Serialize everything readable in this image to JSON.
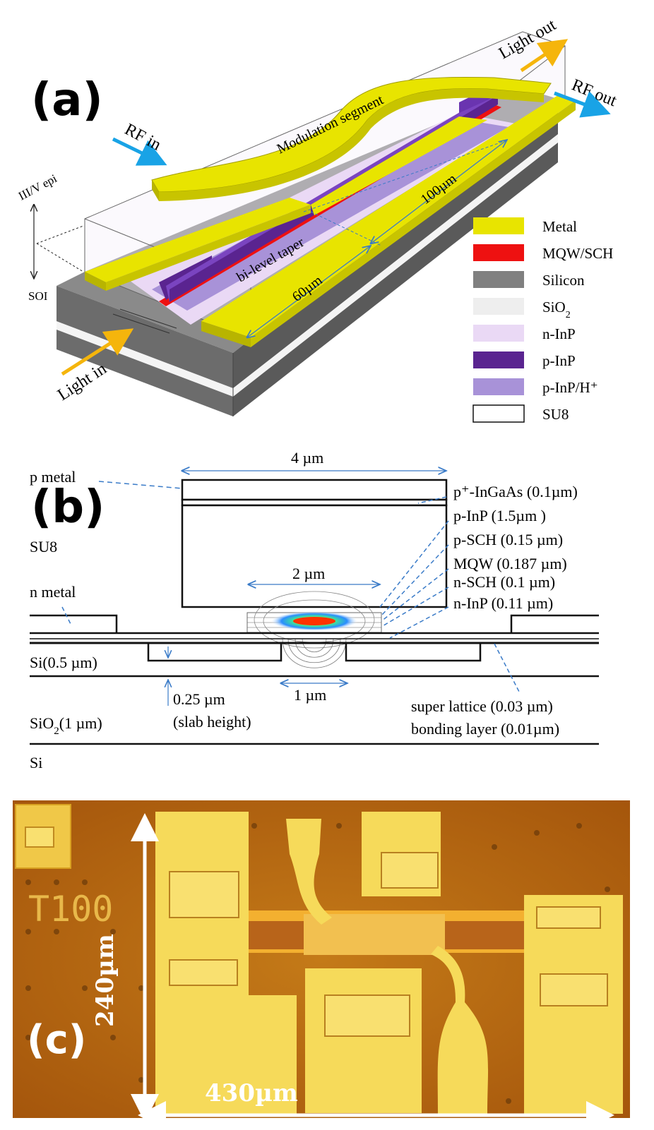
{
  "panel_a": {
    "label": "(a)",
    "rf_in": "RF in",
    "rf_out": "RF out",
    "light_out": "Light out",
    "light_in": "Light in",
    "modulation_segment": "Modulation segment",
    "iiiv_epi": "III/V epi",
    "soi": "SOI",
    "bilevel_taper": "bi-level taper",
    "dim_100": "100µm",
    "dim_60": "60µm",
    "legend": [
      {
        "label": "Metal",
        "color": "#e8e400",
        "border": false
      },
      {
        "label": "MQW/SCH",
        "color": "#ee1111",
        "border": false
      },
      {
        "label": "Silicon",
        "color": "#808080",
        "border": false
      },
      {
        "label": "SiO",
        "sub": "2",
        "color": "#eeeeee",
        "border": false
      },
      {
        "label": "n-InP",
        "color": "#ead9f5",
        "border": false
      },
      {
        "label": "p-InP",
        "color": "#5a2490",
        "border": false
      },
      {
        "label": "p-InP/H⁺",
        "color": "#a892d8",
        "border": false
      },
      {
        "label": "SU8",
        "color": "#ffffff",
        "border": true
      }
    ]
  },
  "panel_b": {
    "label": "(b)",
    "dim_4um": "4 µm",
    "dim_2um": "2 µm",
    "dim_1um": "1 µm",
    "p_metal": "p metal",
    "su8": "SU8",
    "n_metal": "n metal",
    "si_05": "Si(0.5 µm)",
    "sio2_1": "SiO",
    "sio2_1_sub": "2",
    "sio2_1_rest": "(1 µm)",
    "si": "Si",
    "slab_1": "0.25 µm",
    "slab_2": "(slab height)",
    "layers": [
      "p⁺-InGaAs (0.1µm)",
      "p-InP (1.5µm )",
      "p-SCH (0.15 µm)",
      "MQW (0.187 µm)",
      "n-SCH (0.1 µm)",
      "n-InP  (0.11 µm)"
    ],
    "super_lattice": "super lattice (0.03 µm)",
    "bonding_layer": "bonding layer (0.01µm)"
  },
  "panel_c": {
    "label": "(c)",
    "chip_mark": "T100",
    "dim_240": "240µm",
    "dim_430": "430µm"
  },
  "colors": {
    "metal": "#e8e400",
    "mqw": "#ee1111",
    "silicon": "#808080",
    "pinp": "#5a2490",
    "pinp_h": "#a892d8",
    "ninp": "#ead9f5",
    "arrow_blue": "#19a3e6",
    "arrow_orange": "#f5b50c",
    "dim_line": "#3a7bc8"
  }
}
